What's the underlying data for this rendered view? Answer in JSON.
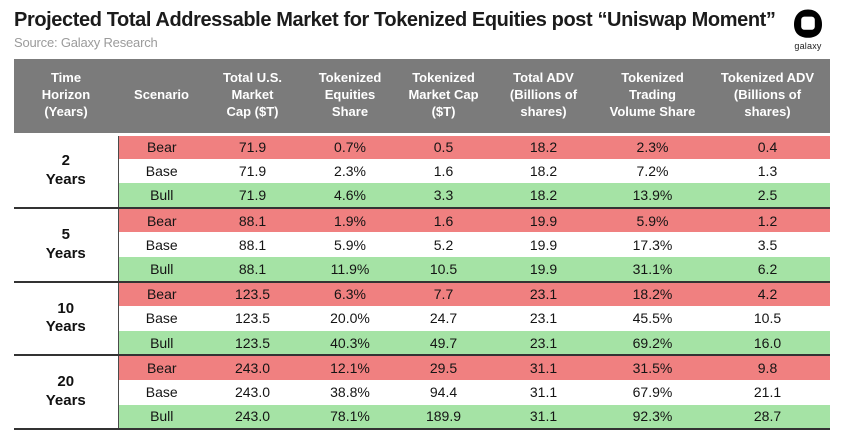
{
  "header": {
    "logo_label": "galaxy",
    "logo_icon": "galaxy-logo-icon"
  },
  "colors": {
    "header_bg": "#7b7b7b",
    "bear_row_bg": "#f08080",
    "base_row_bg": "#ffffff",
    "bull_row_bg": "#a5e3a5",
    "separator": "#333333",
    "header_text": "#ffffff",
    "source_text": "#9b9b9b"
  },
  "chart_data": {
    "type": "table",
    "title": "Projected Total Addressable Market for Tokenized Equities post “Uniswap Moment”",
    "source": "Source: Galaxy Research",
    "columns": [
      "Time\nHorizon\n(Years)",
      "Scenario",
      "Total U.S. Market\nCap ($T)",
      "Tokenized\nEquities\nShare",
      "Tokenized\nMarket Cap\n($T)",
      "Total ADV\n(Billions of\nshares)",
      "Tokenized\nTrading\nVolume Share",
      "Tokenized ADV\n(Billions of\nshares)"
    ],
    "groups": [
      {
        "horizon": "2",
        "horizon_unit": "Years",
        "rows": [
          {
            "scenario": "Bear",
            "values": [
              "71.9",
              "0.7%",
              "0.5",
              "18.2",
              "2.3%",
              "0.4"
            ]
          },
          {
            "scenario": "Base",
            "values": [
              "71.9",
              "2.3%",
              "1.6",
              "18.2",
              "7.2%",
              "1.3"
            ]
          },
          {
            "scenario": "Bull",
            "values": [
              "71.9",
              "4.6%",
              "3.3",
              "18.2",
              "13.9%",
              "2.5"
            ]
          }
        ]
      },
      {
        "horizon": "5",
        "horizon_unit": "Years",
        "rows": [
          {
            "scenario": "Bear",
            "values": [
              "88.1",
              "1.9%",
              "1.6",
              "19.9",
              "5.9%",
              "1.2"
            ]
          },
          {
            "scenario": "Base",
            "values": [
              "88.1",
              "5.9%",
              "5.2",
              "19.9",
              "17.3%",
              "3.5"
            ]
          },
          {
            "scenario": "Bull",
            "values": [
              "88.1",
              "11.9%",
              "10.5",
              "19.9",
              "31.1%",
              "6.2"
            ]
          }
        ]
      },
      {
        "horizon": "10",
        "horizon_unit": "Years",
        "rows": [
          {
            "scenario": "Bear",
            "values": [
              "123.5",
              "6.3%",
              "7.7",
              "23.1",
              "18.2%",
              "4.2"
            ]
          },
          {
            "scenario": "Base",
            "values": [
              "123.5",
              "20.0%",
              "24.7",
              "23.1",
              "45.5%",
              "10.5"
            ]
          },
          {
            "scenario": "Bull",
            "values": [
              "123.5",
              "40.3%",
              "49.7",
              "23.1",
              "69.2%",
              "16.0"
            ]
          }
        ]
      },
      {
        "horizon": "20",
        "horizon_unit": "Years",
        "rows": [
          {
            "scenario": "Bear",
            "values": [
              "243.0",
              "12.1%",
              "29.5",
              "31.1",
              "31.5%",
              "9.8"
            ]
          },
          {
            "scenario": "Base",
            "values": [
              "243.0",
              "38.8%",
              "94.4",
              "31.1",
              "67.9%",
              "21.1"
            ]
          },
          {
            "scenario": "Bull",
            "values": [
              "243.0",
              "78.1%",
              "189.9",
              "31.1",
              "92.3%",
              "28.7"
            ]
          }
        ]
      }
    ]
  }
}
